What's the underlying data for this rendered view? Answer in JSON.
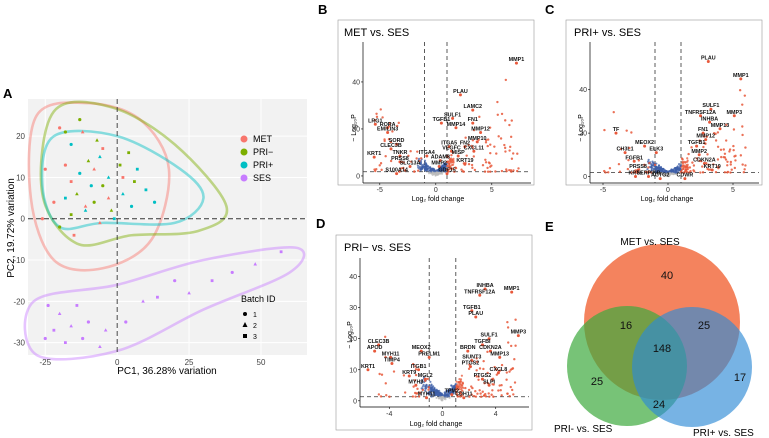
{
  "panel_letters": {
    "a": "A",
    "b": "B",
    "c": "C",
    "d": "D",
    "e": "E"
  },
  "colors": {
    "MET": "#F8766D",
    "PRI_minus": "#7CAE00",
    "PRI_plus": "#00BFC4",
    "SES": "#C77CFF",
    "up": "#E8583A",
    "down": "#3E5FA8",
    "ns": "#BBBBBB",
    "venn_met": "#F05A28",
    "venn_primin": "#3DAA3D",
    "venn_priplus": "#2E8BD6"
  },
  "chart_data": [
    {
      "id": "pca",
      "type": "scatter",
      "xlabel": "PC1, 36.28% variation",
      "ylabel": "PC2, 19.72% variation",
      "xlim": [
        -31,
        66
      ],
      "ylim": [
        -33,
        29
      ],
      "xticks": [
        -25,
        0,
        25,
        50
      ],
      "yticks": [
        -30,
        -20,
        -10,
        0,
        10,
        20
      ],
      "legend_groups": [
        "MET",
        "PRI−",
        "PRI+",
        "SES"
      ],
      "batch_title": "Batch ID",
      "batch_labels": [
        "1",
        "2",
        "3"
      ],
      "series": [
        {
          "name": "MET",
          "points": [
            [
              -20,
              22
            ],
            [
              -12,
              21
            ],
            [
              -5,
              17
            ],
            [
              -18,
              13
            ],
            [
              -8,
              12
            ],
            [
              -16,
              9
            ],
            [
              -25,
              12
            ],
            [
              -11,
              3
            ],
            [
              2,
              10
            ],
            [
              -22,
              4
            ],
            [
              -6,
              -1
            ],
            [
              -15,
              -4
            ],
            [
              -26,
              0
            ],
            [
              -3,
              5
            ]
          ]
        },
        {
          "name": "PRI−",
          "points": [
            [
              -13,
              24
            ],
            [
              -7,
              19
            ],
            [
              4,
              16
            ],
            [
              -18,
              21
            ],
            [
              -10,
              14
            ],
            [
              1,
              13
            ],
            [
              -5,
              8
            ],
            [
              -14,
              6
            ],
            [
              6,
              9
            ],
            [
              -8,
              4
            ],
            [
              -2,
              2
            ],
            [
              -16,
              1
            ],
            [
              -20,
              -2
            ]
          ]
        },
        {
          "name": "PRI+",
          "points": [
            [
              -16,
              18
            ],
            [
              -6,
              15
            ],
            [
              7,
              12
            ],
            [
              -13,
              11
            ],
            [
              -3,
              10
            ],
            [
              10,
              7
            ],
            [
              -9,
              8
            ],
            [
              2,
              6
            ],
            [
              -18,
              5
            ],
            [
              5,
              3
            ],
            [
              -11,
              2
            ],
            [
              -1,
              0
            ],
            [
              13,
              4
            ]
          ]
        },
        {
          "name": "SES",
          "points": [
            [
              -24,
              -21
            ],
            [
              -20,
              -23
            ],
            [
              -14,
              -21
            ],
            [
              -10,
              -25
            ],
            [
              -4,
              -27
            ],
            [
              -18,
              -30
            ],
            [
              -12,
              -29
            ],
            [
              -6,
              -31
            ],
            [
              -22,
              -27
            ],
            [
              3,
              -25
            ],
            [
              9,
              -20
            ],
            [
              14,
              -19
            ],
            [
              20,
              -15
            ],
            [
              25,
              -18
            ],
            [
              33,
              -15
            ],
            [
              40,
              -13
            ],
            [
              48,
              -11
            ],
            [
              57,
              -8
            ],
            [
              -25,
              -29
            ],
            [
              -16,
              -26
            ]
          ]
        }
      ]
    },
    {
      "id": "volcano_B",
      "type": "scatter",
      "title": "MET vs. SES",
      "xlabel": "Log₂ fold change",
      "ylabel": "− Log₁₀P",
      "xlim": [
        -6.5,
        8.5
      ],
      "ylim": [
        -3,
        57
      ],
      "xticks": [
        -5,
        0,
        5
      ],
      "yticks": [
        0,
        20,
        40
      ],
      "fc_cut": 1,
      "p_cut": 1.8,
      "labels": [
        {
          "text": "MMP1",
          "x": 7.2,
          "y": 48
        },
        {
          "text": "PLAU",
          "x": 2.2,
          "y": 34.5
        },
        {
          "text": "LAMC2",
          "x": 3.3,
          "y": 28
        },
        {
          "text": "SULF1",
          "x": 1.5,
          "y": 24.5
        },
        {
          "text": "TGFB1",
          "x": 0.5,
          "y": 22.5
        },
        {
          "text": "FN1",
          "x": 3.3,
          "y": 22.5
        },
        {
          "text": "MMP14",
          "x": 1.8,
          "y": 20.5
        },
        {
          "text": "MMP12",
          "x": 4.0,
          "y": 18.5
        },
        {
          "text": "MMP10",
          "x": 3.7,
          "y": 14.5
        },
        {
          "text": "ITGA5",
          "x": 1.2,
          "y": 12.5
        },
        {
          "text": "FN2",
          "x": 2.6,
          "y": 12.5
        },
        {
          "text": "VEGFC",
          "x": 1.4,
          "y": 10.5
        },
        {
          "text": "CXCL11",
          "x": 3.4,
          "y": 10.5
        },
        {
          "text": "MISP",
          "x": 2.0,
          "y": 8.5
        },
        {
          "text": "ITGA4",
          "x": -0.8,
          "y": 8.5
        },
        {
          "text": "ADAM8",
          "x": 0.4,
          "y": 6.5
        },
        {
          "text": "KRT19",
          "x": 2.6,
          "y": 5.0
        },
        {
          "text": "MMP2",
          "x": 0.3,
          "y": 4.0
        },
        {
          "text": "GDF15",
          "x": 1.0,
          "y": 1.0
        },
        {
          "text": "S100A14",
          "x": -3.5,
          "y": 1.0
        },
        {
          "text": "LRG1",
          "x": -5.4,
          "y": 22.0
        },
        {
          "text": "RORA",
          "x": -4.3,
          "y": 20.5
        },
        {
          "text": "EMILIN3",
          "x": -4.3,
          "y": 18.5
        },
        {
          "text": "SORD",
          "x": -3.5,
          "y": 13.5
        },
        {
          "text": "CLEC3B",
          "x": -4.0,
          "y": 11.5
        },
        {
          "text": "KRT1",
          "x": -5.5,
          "y": 8.0
        },
        {
          "text": "TNKR",
          "x": -3.2,
          "y": 8.5
        },
        {
          "text": "PRSS8",
          "x": -3.2,
          "y": 6.0
        },
        {
          "text": "SLC13A",
          "x": -2.3,
          "y": 4.0
        }
      ]
    },
    {
      "id": "volcano_C",
      "type": "scatter",
      "title": "PRI+ vs. SES",
      "xlabel": "Log₂ fold change",
      "ylabel": "− Log₁₀P",
      "xlim": [
        -6,
        7
      ],
      "ylim": [
        -3,
        62
      ],
      "xticks": [
        -5,
        0,
        5
      ],
      "yticks": [
        0,
        20,
        40
      ],
      "fc_cut": 1,
      "p_cut": 1.8,
      "labels": [
        {
          "text": "PLAU",
          "x": 3.1,
          "y": 53
        },
        {
          "text": "MMP1",
          "x": 5.6,
          "y": 45
        },
        {
          "text": "SULF1",
          "x": 3.3,
          "y": 31
        },
        {
          "text": "TNFRSF12A",
          "x": 2.5,
          "y": 28
        },
        {
          "text": "MMP3",
          "x": 5.1,
          "y": 28
        },
        {
          "text": "INHBA",
          "x": 3.2,
          "y": 25
        },
        {
          "text": "MMP13",
          "x": 4.0,
          "y": 22
        },
        {
          "text": "FN1",
          "x": 2.7,
          "y": 20
        },
        {
          "text": "MMP12",
          "x": 2.9,
          "y": 17
        },
        {
          "text": "TGFB1",
          "x": 2.2,
          "y": 14
        },
        {
          "text": "MMP2",
          "x": 2.4,
          "y": 10
        },
        {
          "text": "CDKN2A",
          "x": 2.8,
          "y": 6
        },
        {
          "text": "KRT19",
          "x": 3.4,
          "y": 3
        },
        {
          "text": "TF",
          "x": -4.0,
          "y": 20
        },
        {
          "text": "MEOX2",
          "x": -1.8,
          "y": 14
        },
        {
          "text": "CH3L1",
          "x": -3.3,
          "y": 11
        },
        {
          "text": "ELK3",
          "x": -0.9,
          "y": 11
        },
        {
          "text": "FGFB1",
          "x": -2.6,
          "y": 7
        },
        {
          "text": "PRSS8",
          "x": -2.3,
          "y": 3
        },
        {
          "text": "KRT1",
          "x": -2.5,
          "y": 0
        },
        {
          "text": "ACTG2",
          "x": -0.6,
          "y": -1
        },
        {
          "text": "CDWR",
          "x": 1.3,
          "y": -1
        },
        {
          "text": "SERPINB",
          "x": -1.5,
          "y": 0
        }
      ]
    },
    {
      "id": "volcano_D",
      "type": "scatter",
      "title": "PRI− vs. SES",
      "xlabel": "Log₂ fold change",
      "ylabel": "− Log₁₀P",
      "xlim": [
        -6.2,
        6.5
      ],
      "ylim": [
        -2,
        46
      ],
      "xticks": [
        -4,
        0,
        4
      ],
      "yticks": [
        0,
        10,
        20,
        30,
        40
      ],
      "fc_cut": 1,
      "p_cut": 1.3,
      "labels": [
        {
          "text": "MMP1",
          "x": 5.2,
          "y": 35
        },
        {
          "text": "INHBA",
          "x": 3.2,
          "y": 36
        },
        {
          "text": "TNFRSF12A",
          "x": 2.8,
          "y": 34
        },
        {
          "text": "TGFB1",
          "x": 2.2,
          "y": 29
        },
        {
          "text": "PLAU",
          "x": 2.5,
          "y": 27
        },
        {
          "text": "SULF1",
          "x": 3.5,
          "y": 20
        },
        {
          "text": "MMP3",
          "x": 5.7,
          "y": 21
        },
        {
          "text": "TGFBI",
          "x": 3.0,
          "y": 18
        },
        {
          "text": "BRDN",
          "x": 1.9,
          "y": 16
        },
        {
          "text": "CDKN2A",
          "x": 3.6,
          "y": 16
        },
        {
          "text": "MMP13",
          "x": 4.3,
          "y": 14
        },
        {
          "text": "SIUNT3",
          "x": 2.2,
          "y": 13
        },
        {
          "text": "PTGS2",
          "x": 2.1,
          "y": 11
        },
        {
          "text": "CXCL8",
          "x": 4.2,
          "y": 9
        },
        {
          "text": "PTGS2",
          "x": 3.0,
          "y": 7
        },
        {
          "text": "SLPI",
          "x": 3.5,
          "y": 5
        },
        {
          "text": "CDH11",
          "x": 1.6,
          "y": 1
        },
        {
          "text": "CLEC3B",
          "x": -4.8,
          "y": 18
        },
        {
          "text": "APOD",
          "x": -5.1,
          "y": 16
        },
        {
          "text": "MYH11",
          "x": -3.9,
          "y": 14
        },
        {
          "text": "TIMP4",
          "x": -3.8,
          "y": 12
        },
        {
          "text": "MEOX2",
          "x": -1.6,
          "y": 16
        },
        {
          "text": "PRELM1",
          "x": -1.0,
          "y": 14
        },
        {
          "text": "KRT1",
          "x": -5.6,
          "y": 10
        },
        {
          "text": "ITGB1",
          "x": -1.8,
          "y": 10
        },
        {
          "text": "KRT9",
          "x": -2.5,
          "y": 8
        },
        {
          "text": "MGL2",
          "x": -1.3,
          "y": 7
        },
        {
          "text": "MYH9",
          "x": -2.0,
          "y": 5
        },
        {
          "text": "MYH11",
          "x": -1.2,
          "y": 1
        },
        {
          "text": "TPM2",
          "x": 0.7,
          "y": 2
        }
      ]
    },
    {
      "id": "venn",
      "type": "venn",
      "sets": [
        "MET vs. SES",
        "PRI- vs. SES",
        "PRI+ vs. SES"
      ],
      "counts": {
        "met_only": "40",
        "primin_only": "25",
        "priplus_only": "17",
        "met_primin": "16",
        "met_priplus": "25",
        "primin_priplus": "24",
        "all": "148"
      }
    }
  ]
}
